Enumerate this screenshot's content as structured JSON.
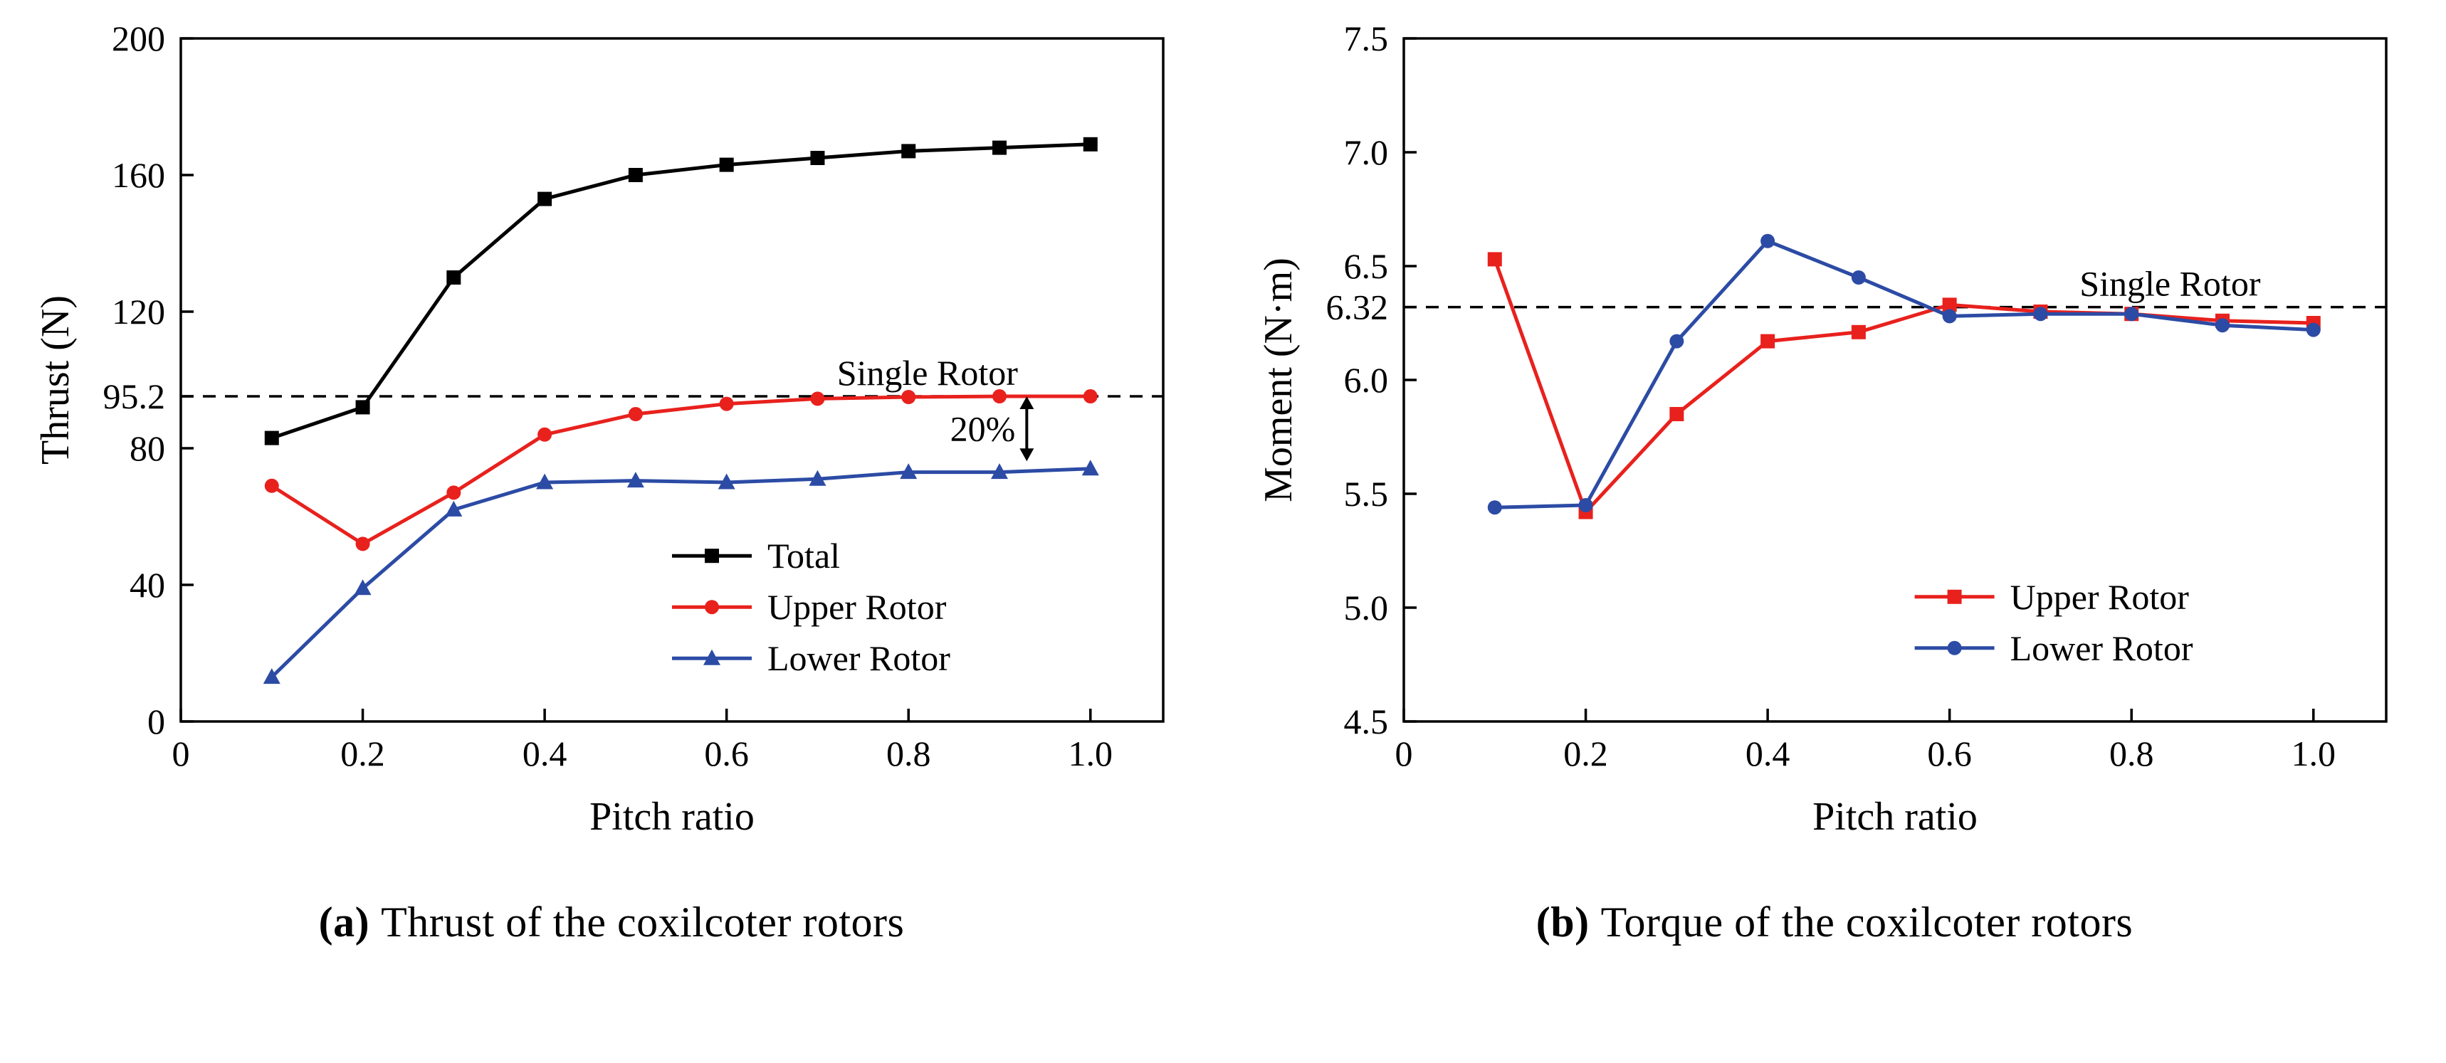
{
  "page": {
    "background": "#ffffff"
  },
  "captions": [
    {
      "label": "(a)",
      "text": "Thrust of the coxilcoter rotors"
    },
    {
      "label": "(b)",
      "text": "Torque of the coxilcoter rotors"
    }
  ],
  "colors": {
    "axis": "#000000",
    "total_series": "#000000",
    "upper_rotor": "#e8211d",
    "lower_rotor": "#2c4ba5",
    "reference_line": "#000000"
  },
  "chart_data": [
    {
      "type": "line",
      "title": "",
      "xlabel": "Pitch ratio",
      "ylabel": "Thrust (N)",
      "xlim": [
        0,
        1.08
      ],
      "ylim": [
        0,
        200
      ],
      "grid": false,
      "legend_position": "inside-lower-right",
      "xticks": [
        {
          "v": 0.0,
          "label": "0"
        },
        {
          "v": 0.2,
          "label": "0.2"
        },
        {
          "v": 0.4,
          "label": "0.4"
        },
        {
          "v": 0.6,
          "label": "0.6"
        },
        {
          "v": 0.8,
          "label": "0.8"
        },
        {
          "v": 1.0,
          "label": "1.0"
        }
      ],
      "yticks": [
        {
          "v": 0,
          "label": "0"
        },
        {
          "v": 40,
          "label": "40"
        },
        {
          "v": 80,
          "label": "80"
        },
        {
          "v": 95.2,
          "label": "95.2"
        },
        {
          "v": 120,
          "label": "120"
        },
        {
          "v": 160,
          "label": "160"
        },
        {
          "v": 200,
          "label": "200"
        }
      ],
      "x": [
        0.1,
        0.2,
        0.3,
        0.4,
        0.5,
        0.6,
        0.7,
        0.8,
        0.9,
        1.0
      ],
      "series": [
        {
          "name": "Total",
          "marker": "square",
          "color": "#000000",
          "values": [
            83,
            92,
            130,
            153,
            160,
            163,
            165,
            167,
            168,
            169
          ]
        },
        {
          "name": "Upper Rotor",
          "marker": "circle",
          "color": "#e8211d",
          "values": [
            69,
            52,
            67,
            84,
            90,
            93,
            94.5,
            95,
            95.2,
            95.2
          ]
        },
        {
          "name": "Lower Rotor",
          "marker": "triangle",
          "color": "#2c4ba5",
          "values": [
            13,
            39,
            62,
            70,
            70.5,
            70,
            71,
            73,
            73,
            74
          ]
        }
      ],
      "ref_line": {
        "y": 95.2,
        "label": "Single Rotor",
        "label_fx": 0.76,
        "style": "dashed"
      },
      "annotation": {
        "text": "20%",
        "x": 0.93,
        "y_top": 95.2,
        "y_bottom": 76.2
      },
      "legend": {
        "fx": 0.5,
        "fy": 0.72
      }
    },
    {
      "type": "line",
      "title": "",
      "xlabel": "Pitch ratio",
      "ylabel": "Moment (N·m)",
      "xlim": [
        0,
        1.08
      ],
      "ylim": [
        4.5,
        7.5
      ],
      "grid": false,
      "legend_position": "inside-lower-right",
      "xticks": [
        {
          "v": 0.0,
          "label": "0"
        },
        {
          "v": 0.2,
          "label": "0.2"
        },
        {
          "v": 0.4,
          "label": "0.4"
        },
        {
          "v": 0.6,
          "label": "0.6"
        },
        {
          "v": 0.8,
          "label": "0.8"
        },
        {
          "v": 1.0,
          "label": "1.0"
        }
      ],
      "yticks": [
        {
          "v": 4.5,
          "label": "4.5"
        },
        {
          "v": 5.0,
          "label": "5.0"
        },
        {
          "v": 5.5,
          "label": "5.5"
        },
        {
          "v": 6.0,
          "label": "6.0"
        },
        {
          "v": 6.32,
          "label": "6.32"
        },
        {
          "v": 6.5,
          "label": "6.5"
        },
        {
          "v": 7.0,
          "label": "7.0"
        },
        {
          "v": 7.5,
          "label": "7.5"
        }
      ],
      "x": [
        0.1,
        0.2,
        0.3,
        0.4,
        0.5,
        0.6,
        0.7,
        0.8,
        0.9,
        1.0
      ],
      "series": [
        {
          "name": "Upper Rotor",
          "marker": "square",
          "color": "#e8211d",
          "values": [
            6.53,
            5.42,
            5.85,
            6.17,
            6.21,
            6.33,
            6.3,
            6.29,
            6.26,
            6.25
          ]
        },
        {
          "name": "Lower Rotor",
          "marker": "circle",
          "color": "#2c4ba5",
          "values": [
            5.44,
            5.45,
            6.17,
            6.61,
            6.45,
            6.28,
            6.29,
            6.29,
            6.24,
            6.22
          ]
        }
      ],
      "ref_line": {
        "y": 6.32,
        "label": "Single Rotor",
        "label_fx": 0.78,
        "style": "dashed"
      },
      "annotation": null,
      "legend": {
        "fx": 0.52,
        "fy": 0.78
      }
    }
  ]
}
